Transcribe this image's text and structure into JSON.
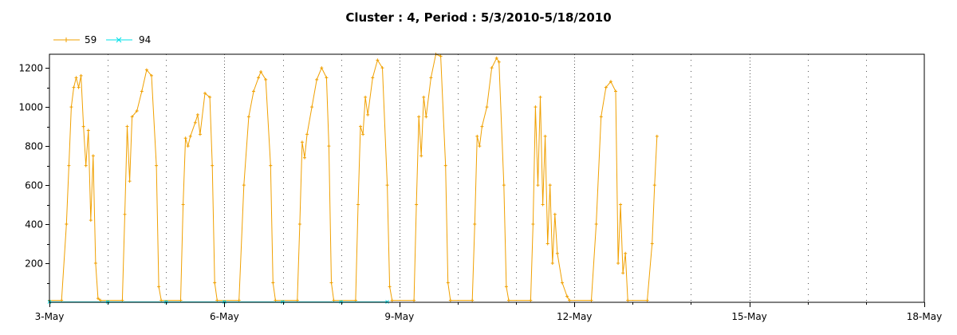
{
  "chart_data": {
    "type": "line",
    "title": "Cluster : 4, Period : 5/3/2010-5/18/2010",
    "xlabel": "",
    "ylabel": "",
    "xlim": [
      "2010-05-03",
      "2010-05-18"
    ],
    "ylim": [
      0,
      1270
    ],
    "x_ticks": [
      "3-May",
      "6-May",
      "9-May",
      "12-May",
      "15-May",
      "18-May"
    ],
    "y_ticks": [
      "200",
      "400",
      "600",
      "800",
      "1000",
      "1200"
    ],
    "grid": "vertical dotted",
    "legend": "top-left",
    "series": [
      {
        "name": "59",
        "color": "#f0a000",
        "marker": "plus",
        "points": [
          [
            "2010-05-03T00:00",
            10
          ],
          [
            "2010-05-03T05:00",
            10
          ],
          [
            "2010-05-03T07:00",
            400
          ],
          [
            "2010-05-03T08:00",
            700
          ],
          [
            "2010-05-03T09:00",
            1000
          ],
          [
            "2010-05-03T10:00",
            1100
          ],
          [
            "2010-05-03T11:00",
            1150
          ],
          [
            "2010-05-03T12:00",
            1100
          ],
          [
            "2010-05-03T13:00",
            1160
          ],
          [
            "2010-05-03T14:00",
            900
          ],
          [
            "2010-05-03T15:00",
            700
          ],
          [
            "2010-05-03T16:00",
            880
          ],
          [
            "2010-05-03T17:00",
            420
          ],
          [
            "2010-05-03T18:00",
            750
          ],
          [
            "2010-05-03T19:00",
            200
          ],
          [
            "2010-05-03T20:00",
            20
          ],
          [
            "2010-05-03T21:00",
            10
          ],
          [
            "2010-05-04T06:00",
            10
          ],
          [
            "2010-05-04T07:00",
            450
          ],
          [
            "2010-05-04T08:00",
            900
          ],
          [
            "2010-05-04T09:00",
            620
          ],
          [
            "2010-05-04T10:00",
            950
          ],
          [
            "2010-05-04T12:00",
            980
          ],
          [
            "2010-05-04T14:00",
            1080
          ],
          [
            "2010-05-04T16:00",
            1190
          ],
          [
            "2010-05-04T18:00",
            1160
          ],
          [
            "2010-05-04T20:00",
            700
          ],
          [
            "2010-05-04T21:00",
            80
          ],
          [
            "2010-05-04T22:00",
            10
          ],
          [
            "2010-05-05T06:00",
            10
          ],
          [
            "2010-05-05T07:00",
            500
          ],
          [
            "2010-05-05T08:00",
            840
          ],
          [
            "2010-05-05T09:00",
            800
          ],
          [
            "2010-05-05T10:00",
            850
          ],
          [
            "2010-05-05T12:00",
            920
          ],
          [
            "2010-05-05T13:00",
            960
          ],
          [
            "2010-05-05T14:00",
            860
          ],
          [
            "2010-05-05T16:00",
            1070
          ],
          [
            "2010-05-05T18:00",
            1050
          ],
          [
            "2010-05-05T19:00",
            700
          ],
          [
            "2010-05-05T20:00",
            100
          ],
          [
            "2010-05-05T21:00",
            10
          ],
          [
            "2010-05-06T06:00",
            10
          ],
          [
            "2010-05-06T08:00",
            600
          ],
          [
            "2010-05-06T10:00",
            950
          ],
          [
            "2010-05-06T12:00",
            1080
          ],
          [
            "2010-05-06T14:00",
            1150
          ],
          [
            "2010-05-06T15:00",
            1180
          ],
          [
            "2010-05-06T17:00",
            1140
          ],
          [
            "2010-05-06T19:00",
            700
          ],
          [
            "2010-05-06T20:00",
            100
          ],
          [
            "2010-05-06T21:00",
            10
          ],
          [
            "2010-05-07T06:00",
            10
          ],
          [
            "2010-05-07T07:00",
            400
          ],
          [
            "2010-05-07T08:00",
            820
          ],
          [
            "2010-05-07T09:00",
            740
          ],
          [
            "2010-05-07T10:00",
            860
          ],
          [
            "2010-05-07T12:00",
            1000
          ],
          [
            "2010-05-07T14:00",
            1140
          ],
          [
            "2010-05-07T16:00",
            1200
          ],
          [
            "2010-05-07T18:00",
            1150
          ],
          [
            "2010-05-07T19:00",
            800
          ],
          [
            "2010-05-07T20:00",
            100
          ],
          [
            "2010-05-07T21:00",
            10
          ],
          [
            "2010-05-08T06:00",
            10
          ],
          [
            "2010-05-08T07:00",
            500
          ],
          [
            "2010-05-08T08:00",
            900
          ],
          [
            "2010-05-08T09:00",
            860
          ],
          [
            "2010-05-08T10:00",
            1050
          ],
          [
            "2010-05-08T11:00",
            960
          ],
          [
            "2010-05-08T13:00",
            1150
          ],
          [
            "2010-05-08T15:00",
            1240
          ],
          [
            "2010-05-08T17:00",
            1200
          ],
          [
            "2010-05-08T19:00",
            600
          ],
          [
            "2010-05-08T20:00",
            80
          ],
          [
            "2010-05-08T21:00",
            10
          ],
          [
            "2010-05-09T06:00",
            10
          ],
          [
            "2010-05-09T07:00",
            500
          ],
          [
            "2010-05-09T08:00",
            950
          ],
          [
            "2010-05-09T09:00",
            750
          ],
          [
            "2010-05-09T10:00",
            1050
          ],
          [
            "2010-05-09T11:00",
            950
          ],
          [
            "2010-05-09T13:00",
            1150
          ],
          [
            "2010-05-09T15:00",
            1270
          ],
          [
            "2010-05-09T17:00",
            1260
          ],
          [
            "2010-05-09T19:00",
            700
          ],
          [
            "2010-05-09T20:00",
            100
          ],
          [
            "2010-05-09T21:00",
            10
          ],
          [
            "2010-05-10T06:00",
            10
          ],
          [
            "2010-05-10T07:00",
            400
          ],
          [
            "2010-05-10T08:00",
            850
          ],
          [
            "2010-05-10T09:00",
            800
          ],
          [
            "2010-05-10T10:00",
            900
          ],
          [
            "2010-05-10T12:00",
            1000
          ],
          [
            "2010-05-10T14:00",
            1200
          ],
          [
            "2010-05-10T16:00",
            1250
          ],
          [
            "2010-05-10T17:00",
            1230
          ],
          [
            "2010-05-10T19:00",
            600
          ],
          [
            "2010-05-10T20:00",
            80
          ],
          [
            "2010-05-10T21:00",
            10
          ],
          [
            "2010-05-11T06:00",
            10
          ],
          [
            "2010-05-11T07:00",
            400
          ],
          [
            "2010-05-11T08:00",
            1000
          ],
          [
            "2010-05-11T09:00",
            600
          ],
          [
            "2010-05-11T10:00",
            1050
          ],
          [
            "2010-05-11T11:00",
            500
          ],
          [
            "2010-05-11T12:00",
            850
          ],
          [
            "2010-05-11T13:00",
            300
          ],
          [
            "2010-05-11T14:00",
            600
          ],
          [
            "2010-05-11T15:00",
            200
          ],
          [
            "2010-05-11T16:00",
            450
          ],
          [
            "2010-05-11T17:00",
            250
          ],
          [
            "2010-05-11T19:00",
            100
          ],
          [
            "2010-05-11T21:00",
            30
          ],
          [
            "2010-05-11T22:00",
            10
          ],
          [
            "2010-05-12T07:00",
            10
          ],
          [
            "2010-05-12T09:00",
            400
          ],
          [
            "2010-05-12T11:00",
            950
          ],
          [
            "2010-05-12T13:00",
            1100
          ],
          [
            "2010-05-12T15:00",
            1130
          ],
          [
            "2010-05-12T17:00",
            1080
          ],
          [
            "2010-05-12T18:00",
            200
          ],
          [
            "2010-05-12T19:00",
            500
          ],
          [
            "2010-05-12T20:00",
            150
          ],
          [
            "2010-05-12T21:00",
            250
          ],
          [
            "2010-05-12T22:00",
            10
          ],
          [
            "2010-05-13T06:00",
            10
          ],
          [
            "2010-05-13T08:00",
            300
          ],
          [
            "2010-05-13T09:00",
            600
          ],
          [
            "2010-05-13T10:00",
            850
          ]
        ]
      },
      {
        "name": "94",
        "color": "#00e0e8",
        "marker": "cross",
        "points": [
          [
            "2010-05-03T00:00",
            2
          ],
          [
            "2010-05-04T00:00",
            2
          ],
          [
            "2010-05-05T00:00",
            2
          ],
          [
            "2010-05-06T00:00",
            2
          ],
          [
            "2010-05-07T00:00",
            2
          ],
          [
            "2010-05-08T00:00",
            2
          ],
          [
            "2010-05-08T19:00",
            2
          ]
        ]
      }
    ]
  }
}
